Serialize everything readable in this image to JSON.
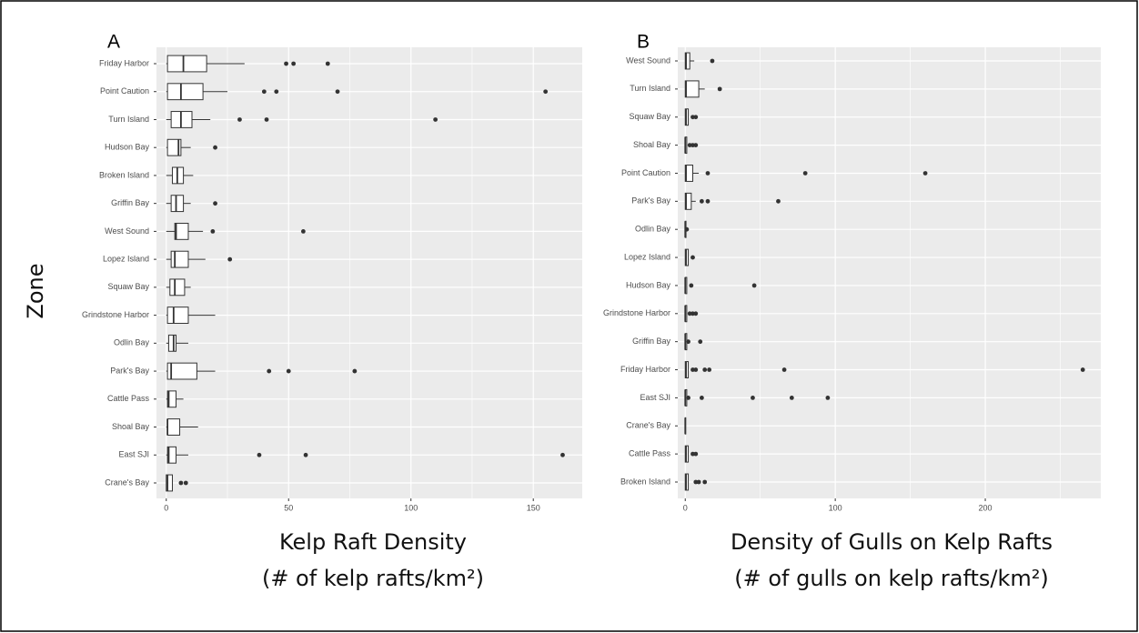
{
  "chart_data": [
    {
      "type": "boxplot",
      "panel_label": "A",
      "y_label": "Zone",
      "x_label": [
        "Kelp Raft Density",
        "(# of kelp rafts/km²)"
      ],
      "xlim": [
        -4,
        170
      ],
      "xticks": [
        0,
        50,
        100,
        150
      ],
      "grid": true,
      "categories": [
        "Friday Harbor",
        "Point Caution",
        "Turn Island",
        "Hudson Bay",
        "Broken Island",
        "Griffin Bay",
        "West Sound",
        "Lopez Island",
        "Squaw Bay",
        "Grindstone Harbor",
        "Odlin Bay",
        "Park's Bay",
        "Cattle Pass",
        "Shoal Bay",
        "East SJI",
        "Crane's Bay"
      ],
      "boxes": [
        {
          "low": 0,
          "q1": 0.5,
          "median": 7,
          "q3": 16.5,
          "high": 32,
          "outliers": [
            49,
            52,
            66
          ]
        },
        {
          "low": 0,
          "q1": 0.5,
          "median": 6,
          "q3": 15,
          "high": 25,
          "outliers": [
            40,
            45,
            70,
            155
          ]
        },
        {
          "low": 0,
          "q1": 2,
          "median": 6,
          "q3": 10.5,
          "high": 18,
          "outliers": [
            30,
            41,
            110
          ]
        },
        {
          "low": 0,
          "q1": 0.5,
          "median": 5,
          "q3": 6,
          "high": 10,
          "outliers": [
            20
          ]
        },
        {
          "low": 0,
          "q1": 2.5,
          "median": 4.5,
          "q3": 7,
          "high": 11,
          "outliers": []
        },
        {
          "low": 0,
          "q1": 2,
          "median": 4,
          "q3": 7,
          "high": 10,
          "outliers": [
            20
          ]
        },
        {
          "low": 0,
          "q1": 3.5,
          "median": 4,
          "q3": 9,
          "high": 15,
          "outliers": [
            19,
            56
          ]
        },
        {
          "low": 0,
          "q1": 2,
          "median": 3.5,
          "q3": 9,
          "high": 16,
          "outliers": [
            26
          ]
        },
        {
          "low": 0,
          "q1": 1.5,
          "median": 3.5,
          "q3": 7.5,
          "high": 10,
          "outliers": []
        },
        {
          "low": 0,
          "q1": 0.5,
          "median": 3,
          "q3": 9,
          "high": 20,
          "outliers": []
        },
        {
          "low": 0,
          "q1": 1,
          "median": 3,
          "q3": 4,
          "high": 9,
          "outliers": []
        },
        {
          "low": 0,
          "q1": 0.5,
          "median": 2,
          "q3": 12.5,
          "high": 20,
          "outliers": [
            42,
            50,
            77
          ]
        },
        {
          "low": 0,
          "q1": 0.5,
          "median": 1,
          "q3": 4,
          "high": 7,
          "outliers": []
        },
        {
          "low": 0,
          "q1": 0.5,
          "median": 0.5,
          "q3": 5.5,
          "high": 13,
          "outliers": []
        },
        {
          "low": 0,
          "q1": 0.5,
          "median": 1,
          "q3": 4,
          "high": 9,
          "outliers": [
            38,
            57,
            162
          ]
        },
        {
          "low": 0,
          "q1": 0,
          "median": 0.5,
          "q3": 2.5,
          "high": 2.5,
          "outliers": [
            6,
            8
          ]
        }
      ]
    },
    {
      "type": "boxplot",
      "panel_label": "B",
      "x_label": [
        "Density of Gulls on Kelp Rafts",
        "(# of gulls on kelp rafts/km²)"
      ],
      "xlim": [
        -5,
        277
      ],
      "xticks": [
        0,
        100,
        200
      ],
      "grid": true,
      "categories": [
        "West Sound",
        "Turn Island",
        "Squaw Bay",
        "Shoal Bay",
        "Point Caution",
        "Park's Bay",
        "Odlin Bay",
        "Lopez Island",
        "Hudson Bay",
        "Grindstone Harbor",
        "Griffin Bay",
        "Friday Harbor",
        "East SJI",
        "Crane's Bay",
        "Cattle Pass",
        "Broken Island"
      ],
      "boxes": [
        {
          "low": 0,
          "q1": 0,
          "median": 0.5,
          "q3": 3,
          "high": 6,
          "outliers": [
            18
          ]
        },
        {
          "low": 0,
          "q1": 0,
          "median": 0.5,
          "q3": 9,
          "high": 13,
          "outliers": [
            23
          ]
        },
        {
          "low": 0,
          "q1": 0,
          "median": 0.5,
          "q3": 2,
          "high": 2,
          "outliers": [
            5,
            7
          ]
        },
        {
          "low": 0,
          "q1": 0,
          "median": 0,
          "q3": 1,
          "high": 1,
          "outliers": [
            3,
            5,
            7
          ]
        },
        {
          "low": 0,
          "q1": 0,
          "median": 0.5,
          "q3": 5,
          "high": 9,
          "outliers": [
            15,
            80,
            160
          ]
        },
        {
          "low": 0,
          "q1": 0,
          "median": 0.5,
          "q3": 4,
          "high": 7,
          "outliers": [
            11,
            15,
            62
          ]
        },
        {
          "low": 0,
          "q1": 0,
          "median": 0,
          "q3": 0.5,
          "high": 0.5,
          "outliers": [
            1
          ]
        },
        {
          "low": 0,
          "q1": 0,
          "median": 0.5,
          "q3": 2,
          "high": 2,
          "outliers": [
            5
          ]
        },
        {
          "low": 0,
          "q1": 0,
          "median": 0,
          "q3": 1,
          "high": 1,
          "outliers": [
            4,
            46
          ]
        },
        {
          "low": 0,
          "q1": 0,
          "median": 0,
          "q3": 1,
          "high": 1,
          "outliers": [
            3,
            5,
            7
          ]
        },
        {
          "low": 0,
          "q1": 0,
          "median": 0,
          "q3": 1,
          "high": 1,
          "outliers": [
            2,
            10
          ]
        },
        {
          "low": 0,
          "q1": 0,
          "median": 0.5,
          "q3": 2,
          "high": 2,
          "outliers": [
            5,
            7,
            13,
            16,
            66,
            265
          ]
        },
        {
          "low": 0,
          "q1": 0,
          "median": 0,
          "q3": 1,
          "high": 1,
          "outliers": [
            2,
            11,
            45,
            71,
            95
          ]
        },
        {
          "low": 0,
          "q1": 0,
          "median": 0,
          "q3": 0,
          "high": 0,
          "outliers": []
        },
        {
          "low": 0,
          "q1": 0,
          "median": 0.5,
          "q3": 2,
          "high": 2,
          "outliers": [
            5,
            7
          ]
        },
        {
          "low": 0,
          "q1": 0,
          "median": 0.5,
          "q3": 2,
          "high": 2,
          "outliers": [
            7,
            9,
            13
          ]
        }
      ]
    }
  ]
}
